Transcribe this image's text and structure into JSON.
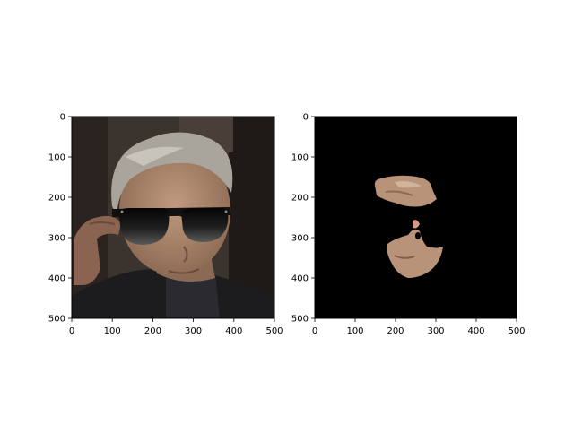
{
  "chart_data": [
    {
      "type": "image",
      "title": "",
      "xlabel": "",
      "ylabel": "",
      "xlim": [
        0,
        500
      ],
      "ylim": [
        500,
        0
      ],
      "xticks": [
        0,
        100,
        200,
        300,
        400,
        500
      ],
      "yticks": [
        0,
        100,
        200,
        300,
        400,
        500
      ],
      "content": "photo of a grey-haired man wearing black sunglasses",
      "colors": {
        "background": "#3a332e",
        "glasses": "#151515",
        "skin": "#b08a70",
        "hair": "#a9a49c",
        "shirt": "#222222"
      }
    },
    {
      "type": "image",
      "title": "",
      "xlabel": "",
      "ylabel": "",
      "xlim": [
        0,
        500
      ],
      "ylim": [
        500,
        0
      ],
      "xticks": [
        0,
        100,
        200,
        300,
        400,
        500
      ],
      "yticks": [
        0,
        100,
        200,
        300,
        400,
        500
      ],
      "content": "face segmentation mask showing only forehead and lower face skin on black",
      "colors": {
        "background": "#000000",
        "skin": "#b9927a"
      }
    }
  ]
}
